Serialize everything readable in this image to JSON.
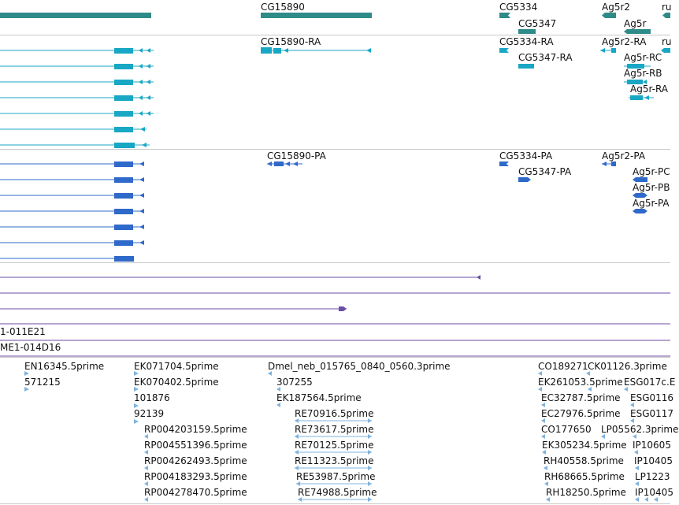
{
  "gene_track": {
    "labels": [
      "CG15890",
      "CG5334",
      "CG5347",
      "Ag5r2",
      "Ag5r",
      "ru"
    ],
    "color": "#2e8b87"
  },
  "transcript_track": {
    "labels": [
      "CG15890-RA",
      "CG5334-RA",
      "CG5347-RA",
      "Ag5r2-RA",
      "Ag5r-RC",
      "Ag5r-RB",
      "Ag5r-RA",
      "ru"
    ],
    "color": "#18a7c4"
  },
  "protein_track": {
    "labels": [
      "CG15890-PA",
      "CG5334-PA",
      "CG5347-PA",
      "Ag5r2-PA",
      "Ag5r-PC",
      "Ag5r-PB",
      "Ag5r-PA"
    ],
    "color": "#2f69c9"
  },
  "alignment_track": {
    "color": "#6b4ea5"
  },
  "clone_track": {
    "labels": [
      "1-011E21",
      "ME1-014D16"
    ]
  },
  "est_track": {
    "color": "#7fb3df",
    "labels": [
      "EN16345.5prime",
      "571215",
      "EK071704.5prime",
      "EK070402.5prime",
      "101876",
      "92139",
      "RP004203159.5prime",
      "RP004551396.5prime",
      "RP004262493.5prime",
      "RP004183293.5prime",
      "RP004278470.5prime",
      "Dmel_neb_015765_0840_0560.3prime",
      "307255",
      "EK187564.5prime",
      "RE70916.5prime",
      "RE73617.5prime",
      "RE70125.5prime",
      "RE11323.5prime",
      "RE53987.5prime",
      "RE74988.5prime",
      "CO189271",
      "CK01126.3prime",
      "EK261053.5prime",
      "ESG017c.E",
      "EC32787.5prime",
      "ESG0116",
      "EC27976.5prime",
      "ESG0117",
      "CO177650",
      "LP05562.3prime",
      "EK305234.5prime",
      "IP10605",
      "RH40558.5prime",
      "IP10405",
      "RH68665.5prime",
      "LP1223",
      "RH18250.5prime",
      "IP10405"
    ]
  }
}
